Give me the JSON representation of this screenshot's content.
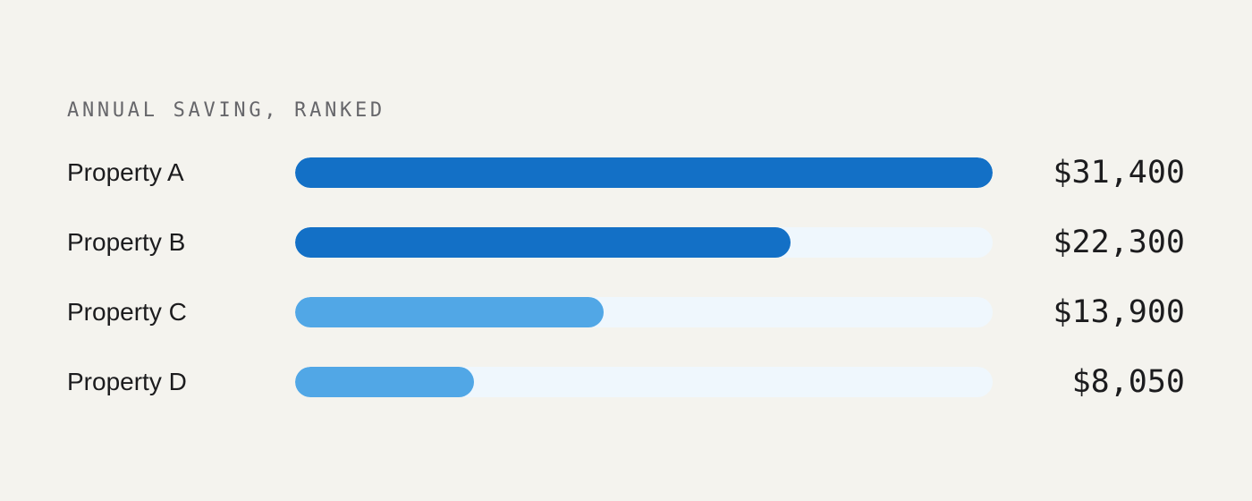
{
  "chart_data": {
    "type": "bar",
    "orientation": "horizontal",
    "title": "ANNUAL SAVING, RANKED",
    "categories": [
      "Property A",
      "Property B",
      "Property C",
      "Property D"
    ],
    "values": [
      31400,
      22300,
      13900,
      8050
    ],
    "value_labels": [
      "$31,400",
      "$22,300",
      "$13,900",
      "$8,050"
    ],
    "xlim": [
      0,
      31400
    ],
    "grid": false,
    "legend": "none"
  },
  "colors": {
    "background": "#f4f3ee",
    "track": "#eff7fd",
    "bar_primary": "#1370c6",
    "bar_secondary": "#51a7e6",
    "title_text": "#66666a",
    "text": "#1c1c1e"
  }
}
